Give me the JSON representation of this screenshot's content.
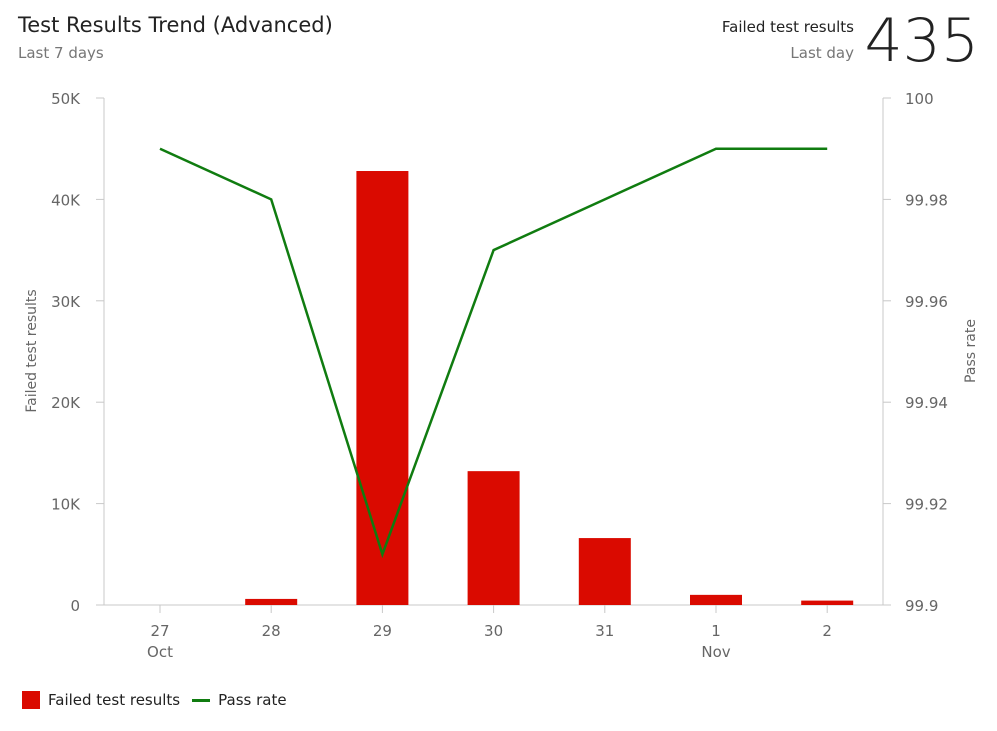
{
  "header": {
    "title": "Test Results Trend (Advanced)",
    "subtitle": "Last 7 days",
    "kpi_label": "Failed test results",
    "kpi_period": "Last day",
    "kpi_value": "435"
  },
  "colors": {
    "bar": "#da0a00",
    "line": "#107c10"
  },
  "chart_data": {
    "type": "bar+line",
    "categories": [
      "27",
      "28",
      "29",
      "30",
      "31",
      "1",
      "2"
    ],
    "month_labels": [
      "Oct",
      "",
      "",
      "",
      "",
      "Nov",
      ""
    ],
    "series": [
      {
        "name": "Failed test results",
        "type": "bar",
        "axis": "left",
        "values": [
          0,
          600,
          42800,
          13200,
          6600,
          1000,
          435
        ]
      },
      {
        "name": "Pass rate",
        "type": "line",
        "axis": "right",
        "values": [
          99.99,
          99.98,
          99.91,
          99.97,
          99.98,
          99.99,
          99.99
        ]
      }
    ],
    "ylabel": "Failed test results",
    "ylabel_right": "Pass rate",
    "ylim": [
      0,
      50000
    ],
    "ylim_right": [
      99.9,
      100
    ],
    "yticks": [
      "0",
      "10K",
      "20K",
      "30K",
      "40K",
      "50K"
    ],
    "yticks_right": [
      "99.9",
      "99.92",
      "99.94",
      "99.96",
      "99.98",
      "100"
    ],
    "grid": false,
    "legend": "bottom-left"
  }
}
